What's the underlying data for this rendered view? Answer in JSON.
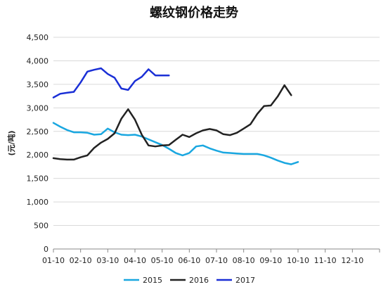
{
  "chart_data": {
    "type": "line",
    "title": "螺纹钢价格走势",
    "ylabel": "(元/吨)",
    "xlabel": "",
    "ylim": [
      0,
      4500
    ],
    "yticks": [
      "0",
      "500",
      "1,000",
      "1,500",
      "2,000",
      "2,500",
      "3,000",
      "3,500",
      "4,000",
      "4,500"
    ],
    "ytick_values": [
      0,
      500,
      1000,
      1500,
      2000,
      2500,
      3000,
      3500,
      4000,
      4500
    ],
    "x_tick_labels": [
      "01-10",
      "02-10",
      "03-10",
      "04-10",
      "05-10",
      "06-10",
      "07-10",
      "08-10",
      "09-10",
      "10-10",
      "11-10",
      "12-10"
    ],
    "x_periods": 48,
    "grid": "horizontal",
    "legend_position": "bottom",
    "series": [
      {
        "name": "2015",
        "color": "#1aa7e0",
        "values": [
          2680,
          2600,
          2530,
          2480,
          2480,
          2470,
          2430,
          2440,
          2560,
          2480,
          2430,
          2420,
          2430,
          2390,
          2330,
          2270,
          2210,
          2130,
          2040,
          1990,
          2040,
          2180,
          2200,
          2140,
          2090,
          2050,
          2040,
          2030,
          2020,
          2020,
          2020,
          1990,
          1940,
          1880,
          1830,
          1800,
          1850
        ]
      },
      {
        "name": "2016",
        "color": "#222222",
        "values": [
          1930,
          1910,
          1900,
          1900,
          1950,
          1990,
          2150,
          2260,
          2340,
          2460,
          2770,
          2970,
          2750,
          2430,
          2200,
          2180,
          2200,
          2210,
          2320,
          2430,
          2380,
          2460,
          2520,
          2550,
          2520,
          2440,
          2420,
          2470,
          2560,
          2650,
          2870,
          3040,
          3050,
          3240,
          3480,
          3270
        ]
      },
      {
        "name": "2017",
        "color": "#1a2fd6",
        "values": [
          3220,
          3300,
          3320,
          3340,
          3540,
          3770,
          3810,
          3840,
          3720,
          3640,
          3410,
          3380,
          3570,
          3660,
          3820,
          3690,
          3690,
          3690
        ]
      }
    ]
  }
}
